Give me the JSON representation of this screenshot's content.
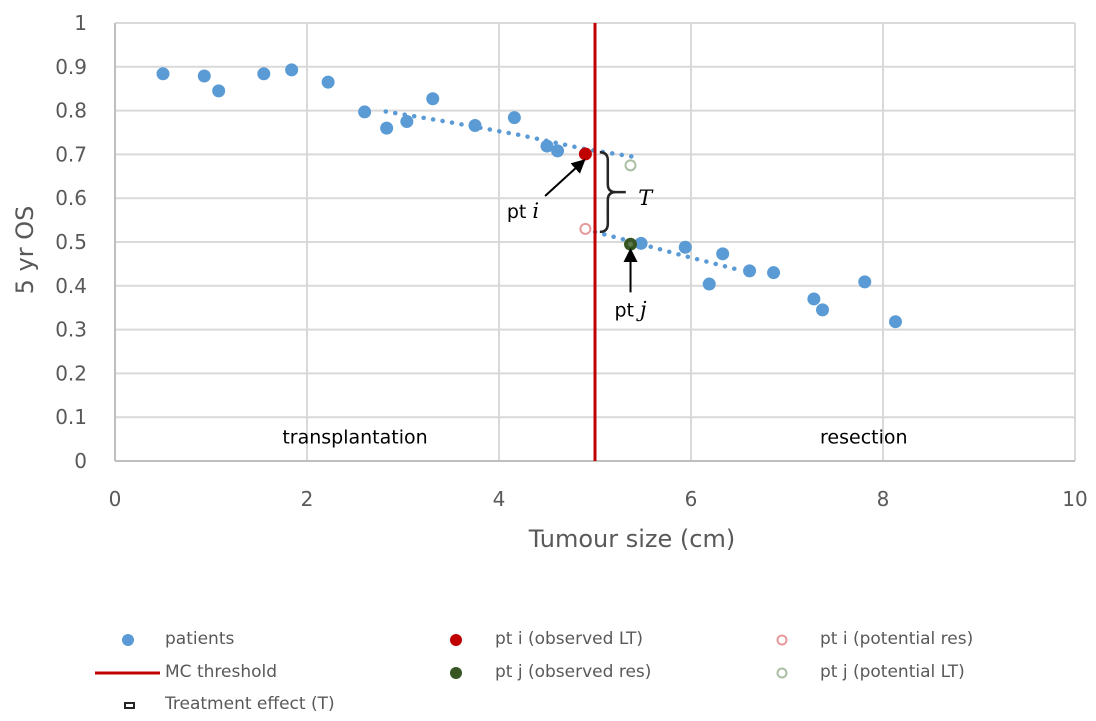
{
  "chart_data": {
    "type": "scatter",
    "title": "",
    "xlabel": "Tumour size (cm)",
    "ylabel": "5 yr OS",
    "xlim": [
      0,
      10
    ],
    "ylim": [
      0,
      1
    ],
    "xticks": [
      0,
      2,
      4,
      6,
      8,
      10
    ],
    "yticks": [
      0,
      0.1,
      0.2,
      0.3,
      0.4,
      0.5,
      0.6,
      0.7,
      0.8,
      0.9,
      1
    ],
    "xtick_labels": [
      "0",
      "2",
      "4",
      "6",
      "8",
      "10"
    ],
    "ytick_labels": [
      "0",
      "0.1",
      "0.2",
      "0.3",
      "0.4",
      "0.5",
      "0.6",
      "0.7",
      "0.8",
      "0.9",
      "1"
    ],
    "grid": true,
    "legend_position": "bottom",
    "colors": {
      "patients": "#5b9bd5",
      "threshold": "#c00000",
      "pt_i_observed": "#c00000",
      "pt_j_observed": "#375623",
      "pt_i_potential": "#e6999a",
      "pt_j_potential": "#a9bfa2",
      "grid": "#d9d9d9",
      "axis": "#bfbfbf",
      "bracket": "#262626"
    },
    "series": [
      {
        "name": "patients",
        "kind": "marker",
        "x": [
          0.5,
          0.93,
          1.08,
          1.55,
          1.84,
          2.22,
          2.6,
          2.83,
          3.04,
          3.31,
          3.75,
          4.16,
          4.5,
          4.61,
          5.48,
          5.94,
          6.19,
          6.33,
          6.61,
          6.86,
          7.28,
          7.37,
          7.81,
          8.13
        ],
        "y": [
          0.884,
          0.879,
          0.845,
          0.884,
          0.893,
          0.865,
          0.797,
          0.76,
          0.775,
          0.827,
          0.766,
          0.784,
          0.719,
          0.708,
          0.497,
          0.488,
          0.404,
          0.473,
          0.434,
          0.43,
          0.37,
          0.345,
          0.409,
          0.318
        ]
      },
      {
        "name": "pt i (observed LT)",
        "kind": "marker",
        "x": [
          4.9
        ],
        "y": [
          0.701
        ]
      },
      {
        "name": "pt j (observed res)",
        "kind": "marker",
        "x": [
          5.37
        ],
        "y": [
          0.495
        ]
      },
      {
        "name": "pt i (potential res)",
        "kind": "hollow-marker",
        "x": [
          4.9
        ],
        "y": [
          0.53
        ]
      },
      {
        "name": "pt j (potential LT)",
        "kind": "hollow-marker",
        "x": [
          5.37
        ],
        "y": [
          0.675
        ]
      },
      {
        "name": "MC threshold",
        "kind": "vline",
        "x": 5.0
      },
      {
        "name": "trend (transplantation)",
        "kind": "dotted-line",
        "x": [
          2.82,
          3.5,
          4.2,
          4.9,
          5.39
        ],
        "y": [
          0.798,
          0.773,
          0.745,
          0.712,
          0.695
        ]
      },
      {
        "name": "trend (resection)",
        "kind": "dotted-line",
        "x": [
          5.0,
          5.4,
          5.9,
          6.54
        ],
        "y": [
          0.523,
          0.5,
          0.47,
          0.434
        ]
      },
      {
        "name": "Treatment effect (T)",
        "kind": "bracket",
        "x": 5.05,
        "y": [
          0.523,
          0.705
        ]
      }
    ],
    "annotations": [
      {
        "text": "transplantation",
        "x": 2.5,
        "y": 0.04
      },
      {
        "text": "resection",
        "x": 7.8,
        "y": 0.04
      },
      {
        "text": "pt",
        "italic": "i",
        "x": 4.25,
        "y": 0.555,
        "arrow_to": [
          4.88,
          0.685
        ],
        "arrow_from": [
          4.48,
          0.605
        ]
      },
      {
        "text": "pt",
        "italic": "j",
        "x": 5.37,
        "y": 0.33,
        "arrow_to": [
          5.37,
          0.48
        ],
        "arrow_from": [
          5.37,
          0.385
        ]
      },
      {
        "text": "",
        "italic": "T",
        "x": 5.45,
        "y": 0.6
      }
    ]
  },
  "legend": {
    "items": [
      {
        "label": "patients",
        "swatch": "dot",
        "color": "#5b9bd5"
      },
      {
        "label": "pt i (observed LT)",
        "swatch": "dot",
        "color": "#c00000"
      },
      {
        "label": "pt i (potential res)",
        "swatch": "ring",
        "color": "#e6999a"
      },
      {
        "label": "MC threshold",
        "swatch": "line",
        "color": "#c00000"
      },
      {
        "label": "pt j (observed res)",
        "swatch": "dot",
        "color": "#375623"
      },
      {
        "label": "pt j (potential LT)",
        "swatch": "ring",
        "color": "#a9bfa2"
      },
      {
        "label": "Treatment effect (T)",
        "swatch": "small-box",
        "color": "#262626"
      }
    ]
  }
}
